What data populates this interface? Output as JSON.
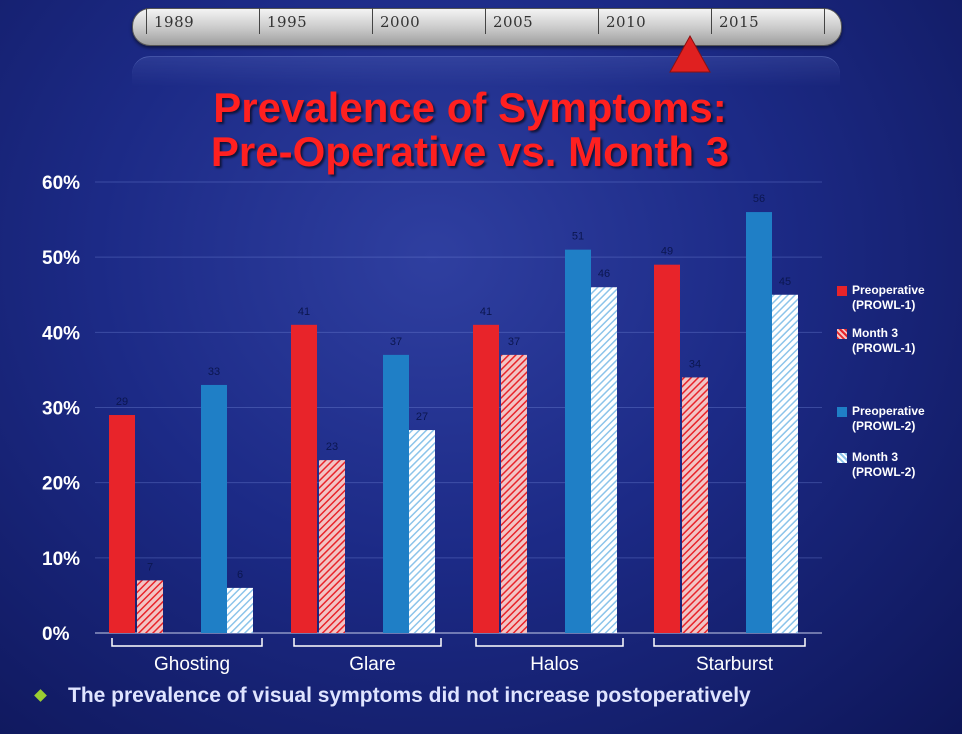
{
  "timeline": {
    "years": [
      "1989",
      "1995",
      "2000",
      "2005",
      "2010",
      "2015"
    ],
    "marker_color": "#e02020"
  },
  "title_line1": "Prevalence of Symptoms:",
  "title_line2": "Pre-Operative vs. Month 3",
  "footnote": "The prevalence of visual symptoms did not increase postoperatively",
  "chart_data": {
    "type": "bar",
    "categories": [
      "Ghosting",
      "Glare",
      "Halos",
      "Starburst"
    ],
    "ylim": [
      0,
      60
    ],
    "yticks": [
      "0%",
      "10%",
      "20%",
      "30%",
      "40%",
      "50%",
      "60%"
    ],
    "series": [
      {
        "name": "Preoperative\n(PROWL-1)",
        "values": [
          29,
          41,
          41,
          49
        ],
        "labels": [
          "29",
          "41",
          "41",
          "49"
        ],
        "color": "#e8242a",
        "pattern": "solid"
      },
      {
        "name": "Month 3\n(PROWL-1)",
        "values": [
          7,
          23,
          37,
          34
        ],
        "labels": [
          "7",
          "23",
          "37",
          "34"
        ],
        "color": "#e8242a",
        "pattern": "hatched"
      },
      {
        "name": "Preoperative\n(PROWL-2)",
        "values": [
          33,
          37,
          51,
          56
        ],
        "labels": [
          "33",
          "37",
          "51",
          "56"
        ],
        "color": "#1f7fc6",
        "pattern": "solid"
      },
      {
        "name": "Month 3\n(PROWL-2)",
        "values": [
          6,
          27,
          46,
          45
        ],
        "labels": [
          "6",
          "27",
          "46",
          "45"
        ],
        "color": "#bcdcf0",
        "pattern": "hatched"
      }
    ],
    "legend_position": "right",
    "grid": true
  }
}
